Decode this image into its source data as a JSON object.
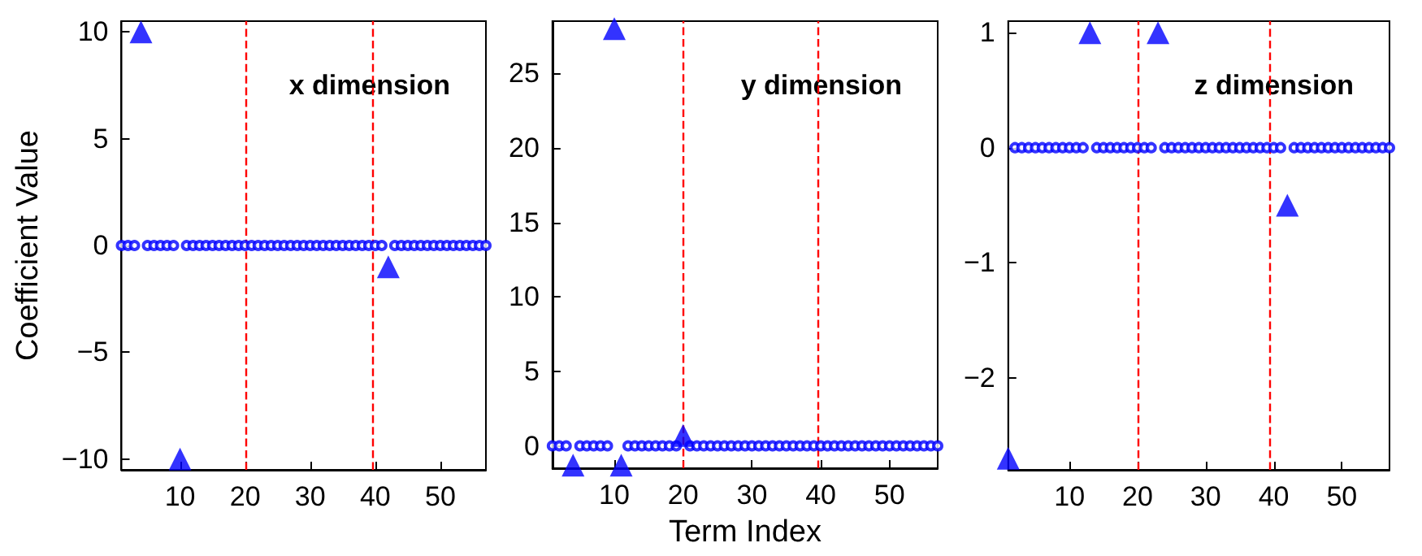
{
  "chart_data": [
    {
      "type": "scatter",
      "ylabel": "Coefficient Value",
      "annotations": [
        "x dimension"
      ],
      "xlim": [
        1,
        57
      ],
      "xticks": [
        10,
        20,
        30,
        40,
        50
      ],
      "ylim": [
        -10.5,
        10.5
      ],
      "yticks": [
        -10,
        -5,
        0,
        5,
        10
      ],
      "grid": false,
      "series": [
        {
          "color": "#0000ff",
          "marker": "circle",
          "x": [
            1,
            2,
            3,
            5,
            6,
            7,
            8,
            9,
            11,
            12,
            13,
            14,
            15,
            16,
            17,
            18,
            19,
            20,
            21,
            22,
            23,
            24,
            25,
            26,
            27,
            28,
            29,
            30,
            31,
            32,
            33,
            34,
            35,
            36,
            37,
            38,
            39,
            40,
            41,
            43,
            44,
            45,
            46,
            47,
            48,
            49,
            50,
            51,
            52,
            53,
            54,
            55,
            56,
            57
          ],
          "values": [
            0,
            0,
            0,
            0,
            0,
            0,
            0,
            0,
            0,
            0,
            0,
            0,
            0,
            0,
            0,
            0,
            0,
            0,
            0,
            0,
            0,
            0,
            0,
            0,
            0,
            0,
            0,
            0,
            0,
            0,
            0,
            0,
            0,
            0,
            0,
            0,
            0,
            0,
            0,
            0,
            0,
            0,
            0,
            0,
            0,
            0,
            0,
            0,
            0,
            0,
            0,
            0,
            0,
            0
          ]
        },
        {
          "color": "#0000ff",
          "marker": "triangle",
          "x": [
            4,
            10,
            42
          ],
          "values": [
            10,
            -10,
            -1
          ]
        }
      ],
      "ref_lines": [
        {
          "axis": "x",
          "value": 20,
          "color": "#ff0000",
          "line_style": "dashed"
        },
        {
          "axis": "x",
          "value": 39.5,
          "color": "#ff0000",
          "line_style": "dashed"
        }
      ]
    },
    {
      "type": "scatter",
      "xlabel": "Term Index",
      "annotations": [
        "y dimension"
      ],
      "xlim": [
        1,
        57
      ],
      "xticks": [
        10,
        20,
        30,
        40,
        50
      ],
      "ylim": [
        -1.5,
        28.5
      ],
      "yticks": [
        0,
        5,
        10,
        15,
        20,
        25
      ],
      "grid": false,
      "series": [
        {
          "color": "#0000ff",
          "marker": "circle",
          "x": [
            1,
            2,
            3,
            5,
            6,
            7,
            8,
            9,
            12,
            13,
            14,
            15,
            16,
            17,
            18,
            19,
            21,
            22,
            23,
            24,
            25,
            26,
            27,
            28,
            29,
            30,
            31,
            32,
            33,
            34,
            35,
            36,
            37,
            38,
            39,
            40,
            41,
            42,
            43,
            44,
            45,
            46,
            47,
            48,
            49,
            50,
            51,
            52,
            53,
            54,
            55,
            56,
            57
          ],
          "values": [
            0,
            0,
            0,
            0,
            0,
            0,
            0,
            0,
            0,
            0,
            0,
            0,
            0,
            0,
            0,
            0,
            0,
            0,
            0,
            0,
            0,
            0,
            0,
            0,
            0,
            0,
            0,
            0,
            0,
            0,
            0,
            0,
            0,
            0,
            0,
            0,
            0,
            0,
            0,
            0,
            0,
            0,
            0,
            0,
            0,
            0,
            0,
            0,
            0,
            0,
            0,
            0,
            0
          ]
        },
        {
          "color": "#0000ff",
          "marker": "triangle",
          "x": [
            4,
            10,
            11,
            20
          ],
          "values": [
            -1.3,
            28,
            -1.3,
            0.7
          ]
        }
      ],
      "ref_lines": [
        {
          "axis": "x",
          "value": 20,
          "color": "#ff0000",
          "line_style": "dashed"
        },
        {
          "axis": "x",
          "value": 39.5,
          "color": "#ff0000",
          "line_style": "dashed"
        }
      ]
    },
    {
      "type": "scatter",
      "annotations": [
        "z dimension"
      ],
      "xlim": [
        1,
        57
      ],
      "xticks": [
        10,
        20,
        30,
        40,
        50
      ],
      "ylim": [
        -2.8,
        1.1
      ],
      "yticks": [
        -2,
        -1,
        0,
        1
      ],
      "grid": false,
      "series": [
        {
          "color": "#0000ff",
          "marker": "circle",
          "x": [
            2,
            3,
            4,
            5,
            6,
            7,
            8,
            9,
            10,
            11,
            12,
            14,
            15,
            16,
            17,
            18,
            19,
            20,
            21,
            22,
            24,
            25,
            26,
            27,
            28,
            29,
            30,
            31,
            32,
            33,
            34,
            35,
            36,
            37,
            38,
            39,
            40,
            41,
            43,
            44,
            45,
            46,
            47,
            48,
            49,
            50,
            51,
            52,
            53,
            54,
            55,
            56,
            57
          ],
          "values": [
            0,
            0,
            0,
            0,
            0,
            0,
            0,
            0,
            0,
            0,
            0,
            0,
            0,
            0,
            0,
            0,
            0,
            0,
            0,
            0,
            0,
            0,
            0,
            0,
            0,
            0,
            0,
            0,
            0,
            0,
            0,
            0,
            0,
            0,
            0,
            0,
            0,
            0,
            0,
            0,
            0,
            0,
            0,
            0,
            0,
            0,
            0,
            0,
            0,
            0,
            0,
            0,
            0
          ]
        },
        {
          "color": "#0000ff",
          "marker": "triangle",
          "x": [
            1,
            13,
            23,
            42
          ],
          "values": [
            -2.7,
            1,
            1,
            -0.5
          ]
        }
      ],
      "ref_lines": [
        {
          "axis": "x",
          "value": 20,
          "color": "#ff0000",
          "line_style": "dashed"
        },
        {
          "axis": "x",
          "value": 39.5,
          "color": "#ff0000",
          "line_style": "dashed"
        }
      ]
    }
  ]
}
